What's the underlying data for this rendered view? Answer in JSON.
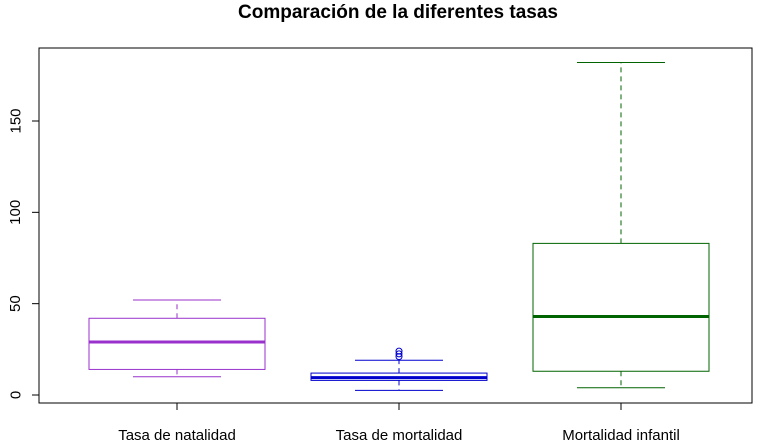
{
  "chart_data": {
    "type": "box",
    "title": "Comparación de la diferentes tasas",
    "xlabel": "",
    "ylabel": "",
    "ylim": [
      -4,
      188
    ],
    "yticks": [
      "0",
      "50",
      "100",
      "150"
    ],
    "categories": [
      "Tasa de natalidad",
      "Tasa de mortalidad",
      "Mortalidad infantil"
    ],
    "series": [
      {
        "color": "#9932CC",
        "whisker_low": 10,
        "q1": 14,
        "median": 29,
        "q3": 42,
        "whisker_high": 52,
        "outliers": []
      },
      {
        "color": "#0000CD",
        "whisker_low": 2.5,
        "q1": 8,
        "median": 9.5,
        "q3": 12,
        "whisker_high": 19,
        "outliers": [
          21,
          22.5,
          24
        ]
      },
      {
        "color": "#006400",
        "whisker_low": 4,
        "q1": 13,
        "median": 43,
        "q3": 83,
        "whisker_high": 182,
        "outliers": []
      }
    ],
    "grid": false,
    "legend": "none"
  }
}
